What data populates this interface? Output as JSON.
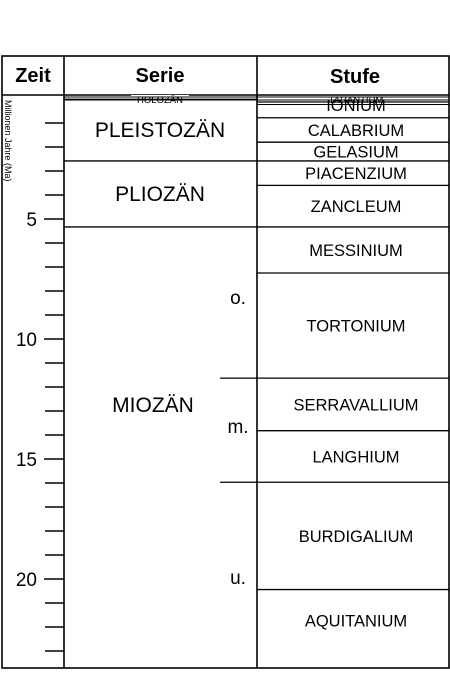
{
  "headers": {
    "time": "Zeit",
    "series": "Serie",
    "stage": "Stufe"
  },
  "axis": {
    "label": "Millionen Jahre (Ma)",
    "ticks": [
      {
        "ma": 5,
        "label": "5"
      },
      {
        "ma": 10,
        "label": "10"
      },
      {
        "ma": 15,
        "label": "15"
      },
      {
        "ma": 20,
        "label": "20"
      }
    ],
    "minor_step_ma": 1,
    "max_ma": 23.03
  },
  "series": [
    {
      "name": "HOLOZÄN",
      "from_ma": 0,
      "to_ma": 0.0117
    },
    {
      "name": "PLEISTOZÄN",
      "from_ma": 0.0117,
      "to_ma": 2.58
    },
    {
      "name": "PLIOZÄN",
      "from_ma": 2.58,
      "to_ma": 5.33
    },
    {
      "name": "MIOZÄN",
      "from_ma": 5.33,
      "to_ma": 23.03
    }
  ],
  "subdivisions": [
    {
      "label": "o.",
      "from_ma": 5.33,
      "to_ma": 11.63
    },
    {
      "label": "m.",
      "from_ma": 11.63,
      "to_ma": 15.97
    },
    {
      "label": "u.",
      "from_ma": 15.97,
      "to_ma": 23.03
    }
  ],
  "stages": [
    {
      "name": "TARANTIUM",
      "from_ma": 0.0117,
      "to_ma": 0.126
    },
    {
      "name": "IONIUM",
      "from_ma": 0.126,
      "to_ma": 0.781
    },
    {
      "name": "CALABRIUM",
      "from_ma": 0.781,
      "to_ma": 1.8
    },
    {
      "name": "GELASIUM",
      "from_ma": 1.8,
      "to_ma": 2.58
    },
    {
      "name": "PIACENZIUM",
      "from_ma": 2.58,
      "to_ma": 3.6
    },
    {
      "name": "ZANCLEUM",
      "from_ma": 3.6,
      "to_ma": 5.33
    },
    {
      "name": "MESSINIUM",
      "from_ma": 5.33,
      "to_ma": 7.25
    },
    {
      "name": "TORTONIUM",
      "from_ma": 7.25,
      "to_ma": 11.63
    },
    {
      "name": "SERRAVALLIUM",
      "from_ma": 11.63,
      "to_ma": 13.82
    },
    {
      "name": "LANGHIUM",
      "from_ma": 13.82,
      "to_ma": 15.97
    },
    {
      "name": "BURDIGALIUM",
      "from_ma": 15.97,
      "to_ma": 20.44
    },
    {
      "name": "AQUITANIUM",
      "from_ma": 20.44,
      "to_ma": 23.03
    }
  ]
}
